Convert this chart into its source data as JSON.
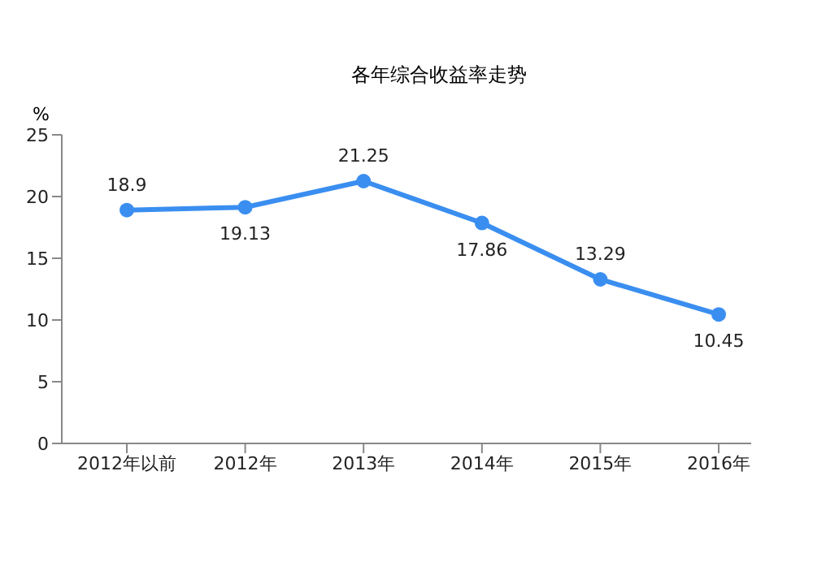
{
  "chart_data": {
    "type": "line",
    "title": "各年综合收益率走势",
    "ylabel": "%",
    "categories": [
      "2012年以前",
      "2012年",
      "2013年",
      "2014年",
      "2015年",
      "2016年"
    ],
    "series": [
      {
        "color": "#3a8ef0",
        "values": [
          18.9,
          19.13,
          21.25,
          17.86,
          13.29,
          10.45
        ]
      }
    ],
    "ylim": [
      0,
      25
    ],
    "yticks": [
      0,
      5,
      10,
      15,
      20,
      25
    ],
    "data_labels": true,
    "marker": "circle",
    "grid": false,
    "legend": false
  }
}
